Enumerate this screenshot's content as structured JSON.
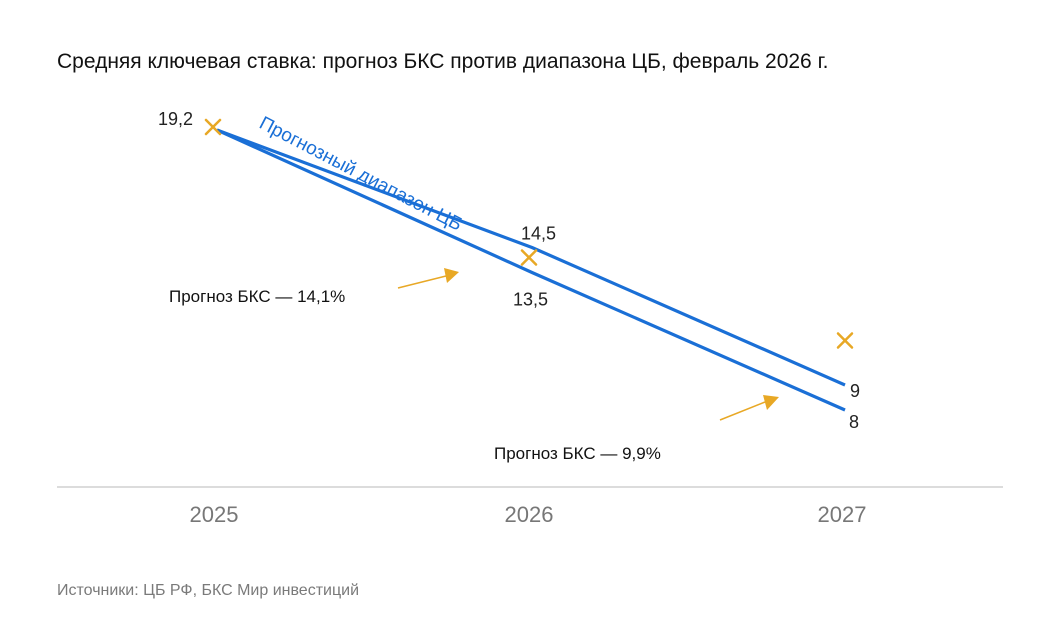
{
  "title": "Средняя ключевая ставка: прогноз БКС против диапазона ЦБ, февраль 2026 г.",
  "source": "Источники: ЦБ РФ, БКС Мир инвестиций",
  "colors": {
    "range": "#1a6fd6",
    "forecast": "#e8a825",
    "axis": "#d0d0d0",
    "text": "#222222",
    "tick": "#777777"
  },
  "chart_data": {
    "type": "line",
    "categories": [
      "2025",
      "2026",
      "2027"
    ],
    "ylim": [
      7,
      20
    ],
    "range_label": "Прогнозный диапазон ЦБ",
    "series": [
      {
        "values": [
          19.2,
          14.5,
          9
        ]
      },
      {
        "values": [
          19.2,
          13.5,
          8
        ]
      }
    ],
    "forecast_markers": [
      {
        "category": "2025",
        "value": 19.2
      },
      {
        "category": "2026",
        "value": 14.1
      },
      {
        "category": "2027",
        "value": 9.9
      }
    ],
    "data_labels": [
      {
        "text": "19,2",
        "category": "2025",
        "value": 19.2
      },
      {
        "text": "14,5",
        "category": "2026",
        "value": 14.5
      },
      {
        "text": "13,5",
        "category": "2026",
        "value": 13.5
      },
      {
        "text": "9",
        "category": "2027",
        "value": 9
      },
      {
        "text": "8",
        "category": "2027",
        "value": 8
      }
    ],
    "annotations": [
      "Прогноз БКС — 14,1%",
      "Прогноз БКС — 9,9%"
    ]
  }
}
